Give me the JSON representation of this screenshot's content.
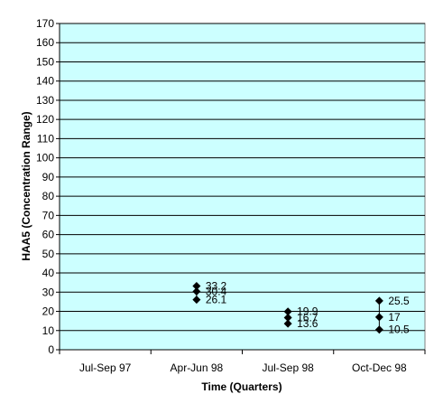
{
  "chart_data": {
    "type": "scatter",
    "title": "",
    "xlabel": "Time (Quarters)",
    "ylabel": "HAA5 (Concentration Range)",
    "categories": [
      "Jul-Sep 97",
      "Apr-Jun 98",
      "Jul-Sep 98",
      "Oct-Dec 98"
    ],
    "ylim": [
      0,
      170
    ],
    "yticks": [
      0,
      10,
      20,
      30,
      40,
      50,
      60,
      70,
      80,
      90,
      100,
      110,
      120,
      130,
      140,
      150,
      160,
      170
    ],
    "grid": true,
    "plot_background": "#ccffff",
    "marker_color": "#000000",
    "groups": [
      {
        "category": "Jul-Sep 97",
        "values": []
      },
      {
        "category": "Apr-Jun 98",
        "values": [
          33.2,
          30.4,
          26.1
        ],
        "labels": [
          "33.2",
          "30.4",
          "26.1"
        ]
      },
      {
        "category": "Jul-Sep 98",
        "values": [
          19.9,
          16.7,
          13.6
        ],
        "labels": [
          "19.9",
          "16.7",
          "13.6"
        ]
      },
      {
        "category": "Oct-Dec 98",
        "values": [
          25.5,
          17,
          10.5
        ],
        "labels": [
          "25.5",
          "17",
          "10.5"
        ]
      }
    ]
  }
}
